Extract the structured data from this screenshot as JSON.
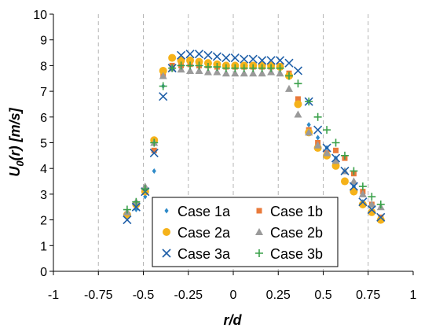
{
  "chart_data": {
    "type": "scatter",
    "title": "",
    "xlabel": "r/d",
    "ylabel": {
      "main": "U",
      "sub": "0",
      "rest": "(r) [m/s]"
    },
    "xlim": [
      -1,
      1
    ],
    "ylim": [
      0,
      10
    ],
    "xticks": [
      -1,
      -0.75,
      -0.5,
      -0.25,
      0,
      0.25,
      0.5,
      0.75,
      1
    ],
    "xtick_labels": [
      "-1",
      "-0.75",
      "-0.5",
      "-0.25",
      "0",
      "0.25",
      "0.5",
      "0.75",
      "1"
    ],
    "yticks": [
      0,
      1,
      2,
      3,
      4,
      5,
      6,
      7,
      8,
      9,
      10
    ],
    "ytick_labels": [
      "0",
      "1",
      "2",
      "3",
      "4",
      "5",
      "6",
      "7",
      "8",
      "9",
      "10"
    ],
    "grid": {
      "vertical": true,
      "horizontal": false,
      "style": "dashed",
      "color": "#b5b5b5"
    },
    "legend": {
      "position": "bottom-center",
      "columns": 2,
      "border_color": "#000000"
    },
    "series": [
      {
        "name": "Case 1a",
        "marker": "diamond",
        "color": "#2e8ac8",
        "x": [
          -0.59,
          -0.54,
          -0.49,
          -0.44,
          -0.39,
          -0.34,
          -0.29,
          -0.24,
          -0.19,
          -0.14,
          -0.09,
          -0.04,
          0.01,
          0.06,
          0.11,
          0.16,
          0.21,
          0.26,
          0.31,
          0.36,
          0.42,
          0.47,
          0.52,
          0.57,
          0.62,
          0.67,
          0.72,
          0.77,
          0.82
        ],
        "y": [
          2.1,
          2.4,
          2.9,
          3.9,
          7.2,
          8.0,
          8.05,
          8.1,
          8.1,
          8.05,
          8.0,
          8.0,
          8.0,
          8.0,
          8.0,
          7.95,
          7.95,
          7.9,
          7.7,
          6.6,
          5.7,
          5.2,
          4.8,
          4.4,
          3.9,
          3.3,
          2.7,
          2.3,
          2.0
        ]
      },
      {
        "name": "Case 1b",
        "marker": "square",
        "color": "#e97a3a",
        "x": [
          -0.59,
          -0.54,
          -0.49,
          -0.44,
          -0.39,
          -0.34,
          -0.29,
          -0.24,
          -0.19,
          -0.14,
          -0.09,
          -0.04,
          0.01,
          0.06,
          0.11,
          0.16,
          0.21,
          0.26,
          0.31,
          0.36,
          0.42,
          0.47,
          0.52,
          0.57,
          0.62,
          0.67,
          0.72,
          0.77,
          0.82
        ],
        "y": [
          2.2,
          2.6,
          3.1,
          4.7,
          7.6,
          8.0,
          8.0,
          8.05,
          8.0,
          8.0,
          7.95,
          7.95,
          7.95,
          7.95,
          7.95,
          7.95,
          7.95,
          8.0,
          7.7,
          6.7,
          5.5,
          5.0,
          4.6,
          4.7,
          4.4,
          3.8,
          3.1,
          2.6,
          2.1
        ]
      },
      {
        "name": "Case 2a",
        "marker": "circle",
        "color": "#f5b21a",
        "x": [
          -0.59,
          -0.54,
          -0.49,
          -0.44,
          -0.39,
          -0.34,
          -0.29,
          -0.24,
          -0.19,
          -0.14,
          -0.09,
          -0.04,
          0.01,
          0.06,
          0.11,
          0.16,
          0.21,
          0.26,
          0.31,
          0.36,
          0.42,
          0.47,
          0.52,
          0.57,
          0.62,
          0.67,
          0.72,
          0.77,
          0.82
        ],
        "y": [
          2.2,
          2.6,
          3.1,
          5.1,
          7.8,
          8.3,
          8.2,
          8.2,
          8.15,
          8.1,
          8.05,
          8.0,
          8.0,
          8.0,
          8.0,
          8.0,
          8.0,
          7.95,
          7.6,
          6.5,
          5.4,
          4.8,
          4.5,
          4.1,
          3.5,
          3.1,
          2.6,
          2.3,
          2.0
        ]
      },
      {
        "name": "Case 2b",
        "marker": "triangle",
        "color": "#9a9a9a",
        "x": [
          -0.59,
          -0.54,
          -0.49,
          -0.44,
          -0.39,
          -0.34,
          -0.29,
          -0.24,
          -0.19,
          -0.14,
          -0.09,
          -0.04,
          0.01,
          0.06,
          0.11,
          0.16,
          0.21,
          0.26,
          0.31,
          0.36,
          0.42,
          0.47,
          0.52,
          0.57,
          0.62,
          0.67,
          0.72,
          0.77,
          0.82
        ],
        "y": [
          2.3,
          2.7,
          3.3,
          5.0,
          7.6,
          7.9,
          7.85,
          7.8,
          7.8,
          7.75,
          7.75,
          7.7,
          7.7,
          7.7,
          7.7,
          7.7,
          7.75,
          7.7,
          7.1,
          6.1,
          5.4,
          4.9,
          4.6,
          4.3,
          3.9,
          3.5,
          3.0,
          2.6,
          2.5
        ]
      },
      {
        "name": "Case 3a",
        "marker": "x",
        "color": "#1f5fa8",
        "x": [
          -0.59,
          -0.54,
          -0.49,
          -0.44,
          -0.39,
          -0.34,
          -0.29,
          -0.24,
          -0.19,
          -0.14,
          -0.09,
          -0.04,
          0.01,
          0.06,
          0.11,
          0.16,
          0.21,
          0.26,
          0.31,
          0.36,
          0.42,
          0.47,
          0.52,
          0.57,
          0.62,
          0.67,
          0.72,
          0.77,
          0.82
        ],
        "y": [
          2.0,
          2.5,
          3.1,
          4.6,
          6.8,
          7.9,
          8.4,
          8.45,
          8.45,
          8.4,
          8.35,
          8.3,
          8.3,
          8.25,
          8.25,
          8.2,
          8.2,
          8.2,
          8.1,
          7.8,
          6.6,
          5.5,
          4.8,
          4.4,
          3.9,
          3.3,
          2.7,
          2.4,
          2.1
        ]
      },
      {
        "name": "Case 3b",
        "marker": "plus",
        "color": "#3aa14a",
        "x": [
          -0.59,
          -0.54,
          -0.49,
          -0.44,
          -0.39,
          -0.34,
          -0.29,
          -0.24,
          -0.19,
          -0.14,
          -0.09,
          -0.04,
          0.01,
          0.06,
          0.11,
          0.16,
          0.21,
          0.26,
          0.31,
          0.36,
          0.42,
          0.47,
          0.52,
          0.57,
          0.62,
          0.67,
          0.72,
          0.77,
          0.82
        ],
        "y": [
          2.4,
          2.7,
          3.2,
          5.0,
          7.2,
          7.9,
          8.0,
          8.0,
          8.0,
          7.95,
          7.95,
          7.9,
          7.9,
          7.9,
          7.9,
          7.9,
          7.9,
          7.9,
          7.6,
          7.3,
          6.6,
          6.0,
          5.5,
          5.0,
          4.5,
          3.9,
          3.3,
          2.9,
          2.6
        ]
      }
    ]
  }
}
